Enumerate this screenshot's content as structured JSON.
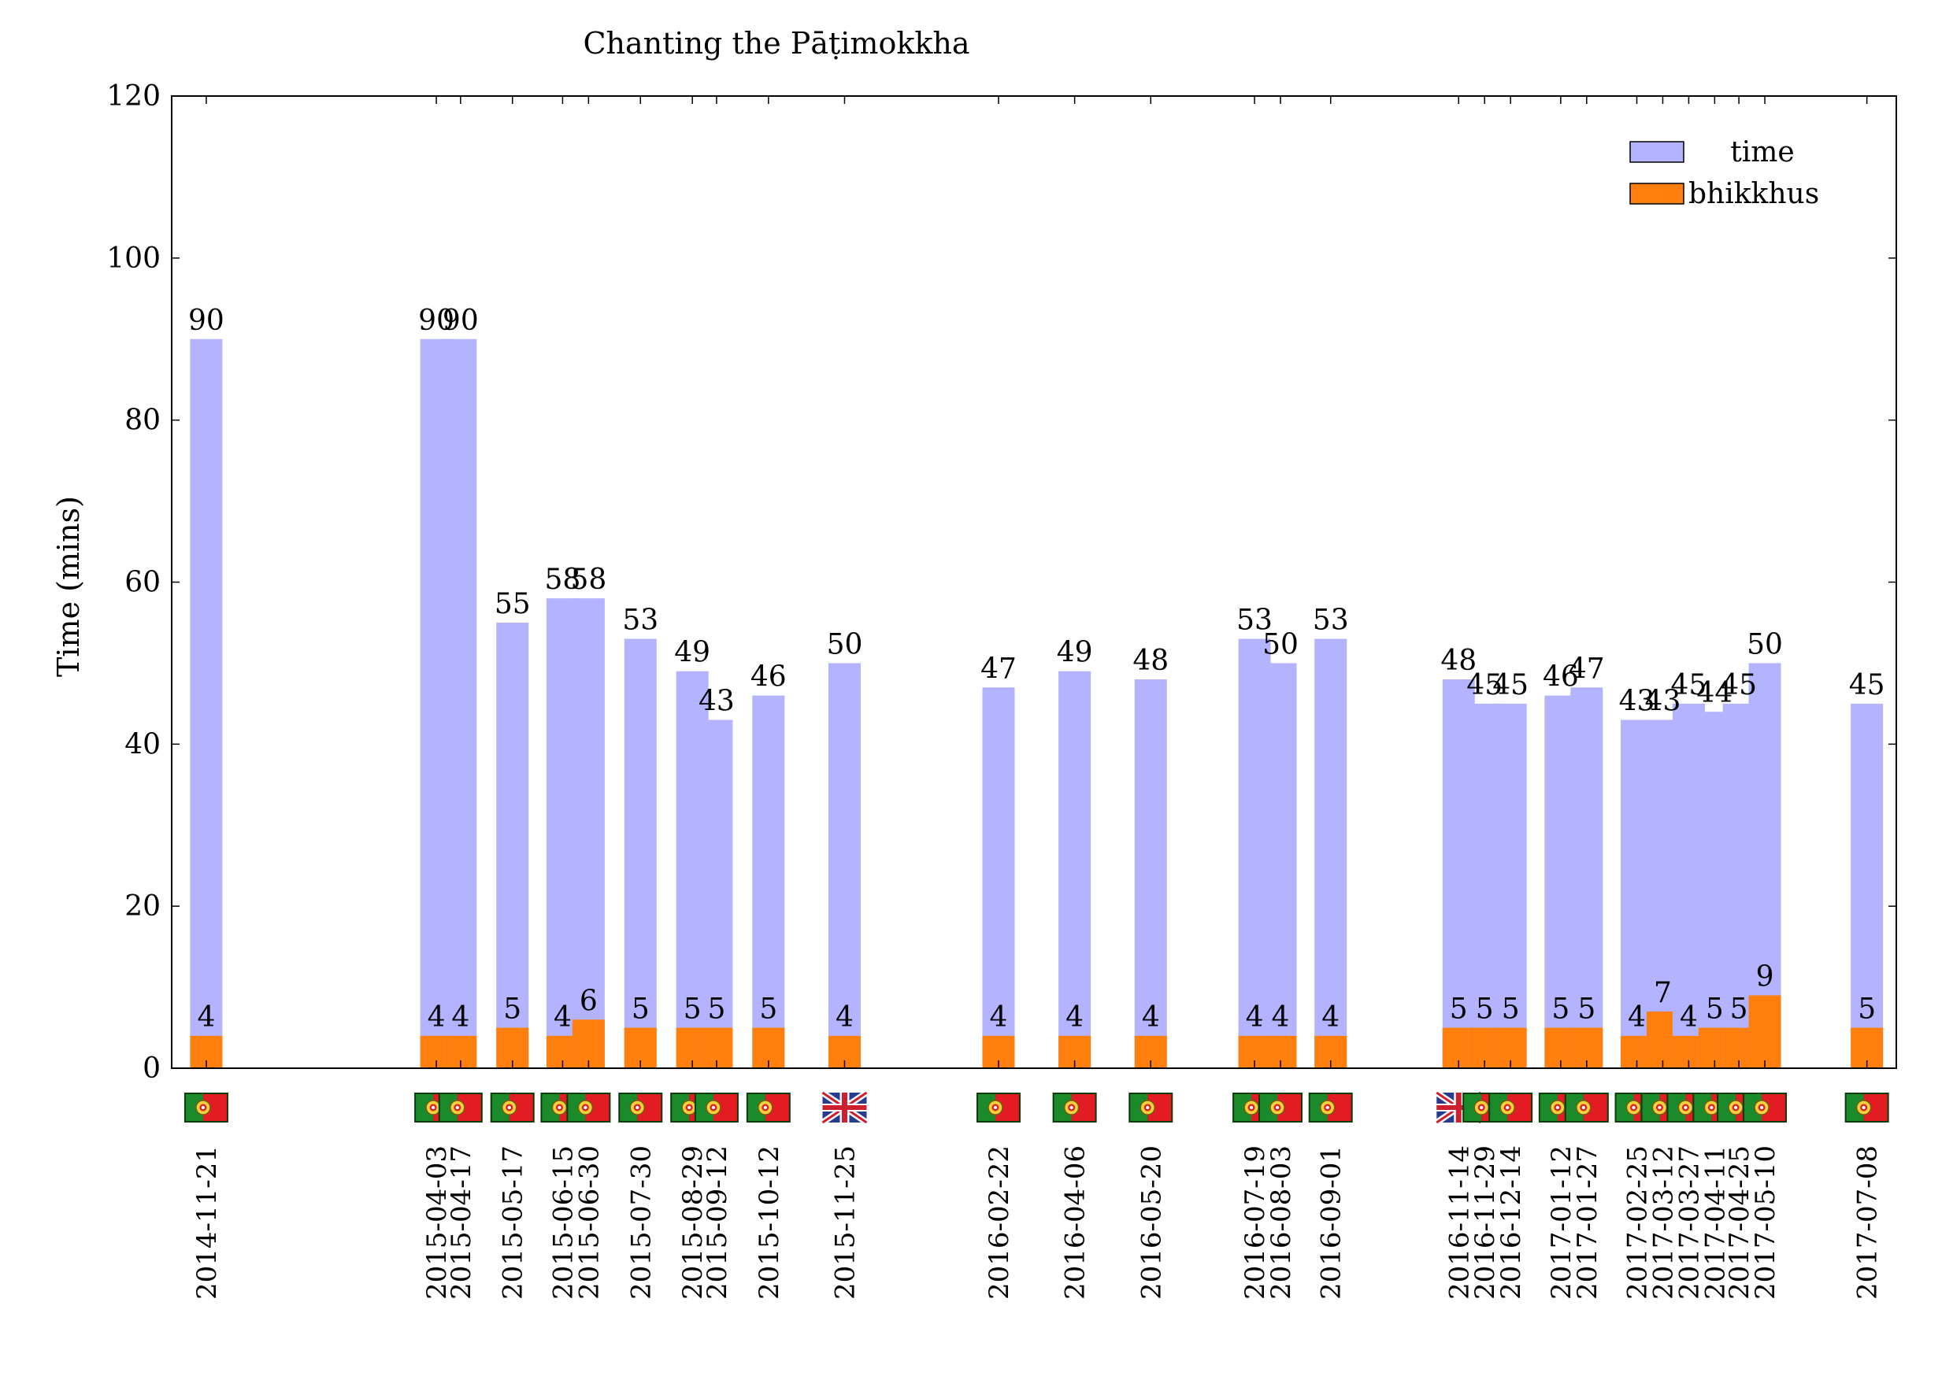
{
  "chart_data": {
    "type": "bar",
    "title": "Chanting the Pāṭimokkha",
    "xlabel": "",
    "ylabel": "Time (mins)",
    "ylim": [
      0,
      120
    ],
    "yticks": [
      0,
      20,
      40,
      60,
      80,
      100,
      120
    ],
    "xlim": [
      "2014-11-01",
      "2017-07-25"
    ],
    "legend_position": "top-right",
    "grid": false,
    "colors": {
      "time": "#b3b3ff",
      "bhikkhus": "#ff7f0e"
    },
    "series": [
      {
        "name": "time",
        "values": [
          90,
          90,
          90,
          55,
          58,
          58,
          53,
          49,
          43,
          46,
          50,
          47,
          49,
          48,
          53,
          50,
          53,
          48,
          45,
          45,
          46,
          47,
          43,
          43,
          45,
          44,
          45,
          50,
          45
        ]
      },
      {
        "name": "bhikkhus",
        "values": [
          4,
          4,
          4,
          5,
          4,
          6,
          5,
          5,
          5,
          5,
          4,
          4,
          4,
          4,
          4,
          4,
          4,
          5,
          5,
          5,
          5,
          5,
          4,
          7,
          4,
          5,
          5,
          9,
          5
        ]
      }
    ],
    "categories": [
      "2014-11-21",
      "2015-04-03",
      "2015-04-17",
      "2015-05-17",
      "2015-06-15",
      "2015-06-30",
      "2015-07-30",
      "2015-08-29",
      "2015-09-12",
      "2015-10-12",
      "2015-11-25",
      "2016-02-22",
      "2016-04-06",
      "2016-05-20",
      "2016-07-19",
      "2016-08-03",
      "2016-09-01",
      "2016-11-14",
      "2016-11-29",
      "2016-12-14",
      "2017-01-12",
      "2017-01-27",
      "2017-02-25",
      "2017-03-12",
      "2017-03-27",
      "2017-04-11",
      "2017-04-25",
      "2017-05-10",
      "2017-07-08"
    ],
    "flags": [
      "portugal-flag-icon",
      "portugal-flag-icon",
      "portugal-flag-icon",
      "portugal-flag-icon",
      "portugal-flag-icon",
      "portugal-flag-icon",
      "portugal-flag-icon",
      "portugal-flag-icon",
      "portugal-flag-icon",
      "portugal-flag-icon",
      "uk-flag-icon",
      "portugal-flag-icon",
      "portugal-flag-icon",
      "portugal-flag-icon",
      "portugal-flag-icon",
      "portugal-flag-icon",
      "portugal-flag-icon",
      "uk-flag-icon",
      "portugal-flag-icon",
      "portugal-flag-icon",
      "portugal-flag-icon",
      "portugal-flag-icon",
      "portugal-flag-icon",
      "portugal-flag-icon",
      "portugal-flag-icon",
      "portugal-flag-icon",
      "portugal-flag-icon",
      "portugal-flag-icon",
      "portugal-flag-icon"
    ]
  }
}
